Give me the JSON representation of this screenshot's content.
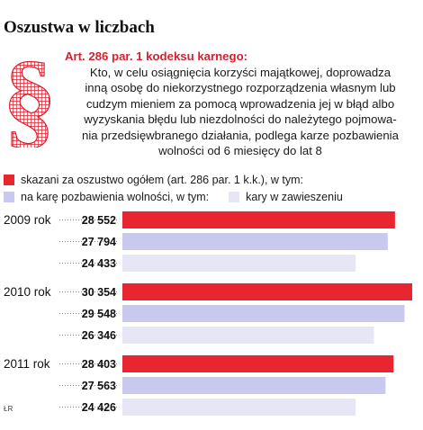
{
  "title": "Oszustwa w liczbach",
  "law": {
    "heading": "Art. 286 par. 1 kodeksu karnego:",
    "text_lines": [
      "Kto, w celu osiągnięcia korzyści majątkowej, doprowadza",
      "inną osobę do niekorzystnego rozporządzenia własnym lub",
      "cudzym mieniem za pomocą wprowadzenia jej w błąd albo",
      "wyzyskania błędu lub niezdolności do należytego pojmowa-",
      "nia przedsięwbranego działania, podlega karze pozbawienia",
      "wolności od 6 miesięcy do lat 8"
    ],
    "icon": "section-sign-icon"
  },
  "source": "ŁR",
  "chart_data": {
    "type": "bar",
    "orientation": "horizontal",
    "title": "Oszustwa w liczbach",
    "categories": [
      "2009 rok",
      "2010 rok",
      "2011 rok"
    ],
    "series": [
      {
        "name": "skazani za oszustwo ogółem (art. 286 par. 1 k.k.), w tym:",
        "color": "#e8262f",
        "values": [
          28552,
          30354,
          28403
        ],
        "labels": [
          "28 552",
          "30 354",
          "28 403"
        ]
      },
      {
        "name": "na karę pozbawienia wolności, w tym:",
        "color": "#c9c9f0",
        "values": [
          27794,
          29548,
          27563
        ],
        "labels": [
          "27 794",
          "29 548",
          "27 563"
        ]
      },
      {
        "name": "kary w zawieszeniu",
        "color": "#e6e6f7",
        "values": [
          24433,
          26346,
          24426
        ],
        "labels": [
          "24 433",
          "26 346",
          "24 426"
        ]
      }
    ],
    "xlim": [
      0,
      30354
    ],
    "grid": false,
    "legend": "top-left"
  }
}
